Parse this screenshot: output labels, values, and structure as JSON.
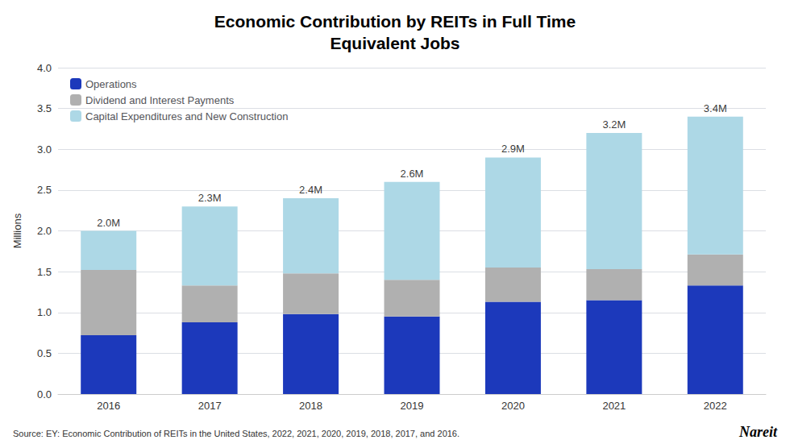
{
  "chart_data": {
    "type": "bar",
    "stacked": true,
    "title": "Economic Contribution by REITs in Full Time\nEquivalent Jobs",
    "y_label": "Millions",
    "categories": [
      "2016",
      "2017",
      "2018",
      "2019",
      "2020",
      "2021",
      "2022"
    ],
    "series": [
      {
        "name": "Operations",
        "color": "#1c39bb",
        "values": [
          0.72,
          0.88,
          0.98,
          0.95,
          1.13,
          1.15,
          1.33
        ]
      },
      {
        "name": "Dividend and Interest Payments",
        "color": "#b0b0b0",
        "values": [
          0.8,
          0.45,
          0.5,
          0.45,
          0.42,
          0.38,
          0.38
        ]
      },
      {
        "name": "Capital Expenditures and New Construction",
        "color": "#add8e6",
        "values": [
          0.48,
          0.97,
          0.92,
          1.2,
          1.35,
          1.67,
          1.69
        ]
      }
    ],
    "annotations": [
      {
        "x": "2016",
        "y": 2.0,
        "text": "2.0M"
      },
      {
        "x": "2017",
        "y": 2.3,
        "text": "2.3M"
      },
      {
        "x": "2018",
        "y": 2.4,
        "text": "2.4M"
      },
      {
        "x": "2019",
        "y": 2.6,
        "text": "2.6M"
      },
      {
        "x": "2020",
        "y": 2.9,
        "text": "2.9M"
      },
      {
        "x": "2021",
        "y": 3.2,
        "text": "3.2M"
      },
      {
        "x": "2022",
        "y": 3.4,
        "text": "3.4M"
      }
    ],
    "ylim": [
      0,
      4.0
    ],
    "yticks": [
      {
        "value": 0.0,
        "label": "0.0"
      },
      {
        "value": 0.5,
        "label": "0.5"
      },
      {
        "value": 1.0,
        "label": "1.0"
      },
      {
        "value": 1.5,
        "label": "1.5"
      },
      {
        "value": 2.0,
        "label": "2.0"
      },
      {
        "value": 2.5,
        "label": "2.5"
      },
      {
        "value": 3.0,
        "label": "3.0"
      },
      {
        "value": 3.5,
        "label": "3.5"
      },
      {
        "value": 4.0,
        "label": "4.0"
      }
    ],
    "grid": true,
    "legend": "upper left",
    "source": "Source: EY: Economic Contribution of REITs in the United States, 2022, 2021, 2020, 2019, 2018, 2017, and 2016.",
    "credit": "Nareit"
  }
}
